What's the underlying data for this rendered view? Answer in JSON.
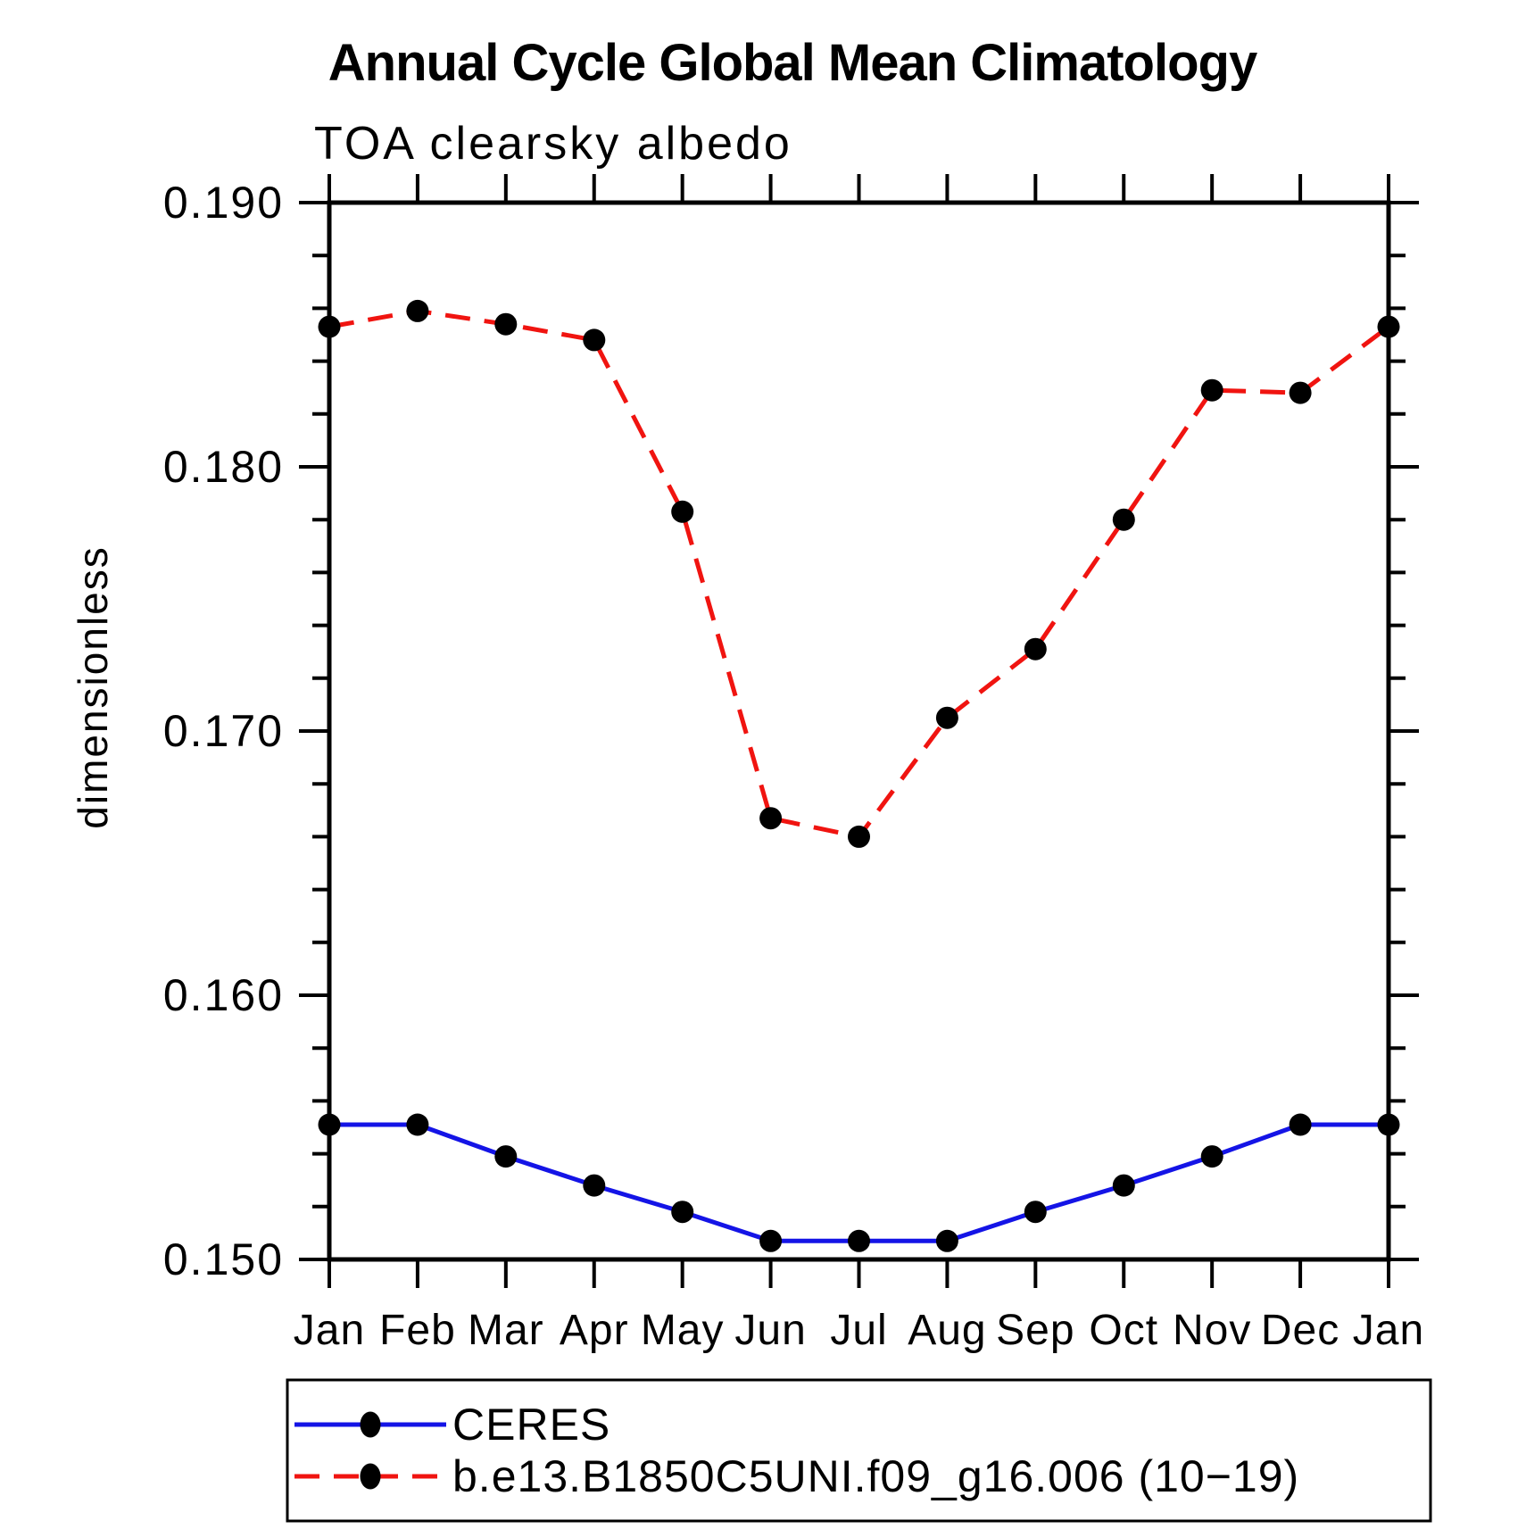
{
  "chart_data": {
    "type": "line",
    "title": "Annual Cycle Global Mean Climatology",
    "subtitle": "TOA clearsky albedo",
    "ylabel": "dimensionless",
    "xlabel": "",
    "categories": [
      "Jan",
      "Feb",
      "Mar",
      "Apr",
      "May",
      "Jun",
      "Jul",
      "Aug",
      "Sep",
      "Oct",
      "Nov",
      "Dec",
      "Jan"
    ],
    "ylim": [
      0.15,
      0.19
    ],
    "y_tick_labels": [
      "0.190",
      "0.180",
      "0.170",
      "0.160",
      "0.150"
    ],
    "y_major_ticks": [
      0.19,
      0.18,
      0.17,
      0.16,
      0.15
    ],
    "y_minor_step": 0.002,
    "grid": false,
    "legend_position": "bottom",
    "axis_color": "#000000",
    "marker_color": "#000000",
    "series": [
      {
        "name": "CERES",
        "style": "solid",
        "color": "#1414e6",
        "values": [
          0.1551,
          0.1551,
          0.1539,
          0.1528,
          0.1518,
          0.1507,
          0.1507,
          0.1507,
          0.1518,
          0.1528,
          0.1539,
          0.1551,
          0.1551
        ]
      },
      {
        "name": "b.e13.B1850C5UNI.f09_g16.006 (10−19)",
        "style": "dashed",
        "color": "#f01410",
        "values": [
          0.1853,
          0.1859,
          0.1854,
          0.1848,
          0.1783,
          0.1667,
          0.166,
          0.1705,
          0.1731,
          0.178,
          0.1829,
          0.1828,
          0.1853
        ]
      }
    ]
  }
}
